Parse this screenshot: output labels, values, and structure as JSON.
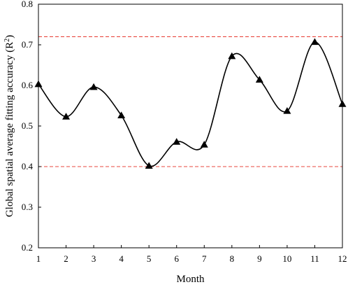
{
  "chart_data": {
    "type": "line",
    "xlabel": "Month",
    "ylabel_text": "Global spatial average fitting accuracy (R",
    "ylabel_sup": "2",
    "ylabel_close": ")",
    "x": [
      1,
      2,
      3,
      4,
      5,
      6,
      7,
      8,
      9,
      10,
      11,
      12
    ],
    "y": [
      0.603,
      0.523,
      0.596,
      0.526,
      0.402,
      0.461,
      0.454,
      0.672,
      0.614,
      0.537,
      0.707,
      0.554
    ],
    "xlim": [
      1,
      12
    ],
    "ylim": [
      0.2,
      0.8
    ],
    "xticks": [
      "1",
      "2",
      "3",
      "4",
      "5",
      "6",
      "7",
      "8",
      "9",
      "10",
      "11",
      "12"
    ],
    "yticks": [
      "0.2",
      "0.3",
      "0.4",
      "0.5",
      "0.6",
      "0.7",
      "0.8"
    ],
    "reference_lines": [
      0.72,
      0.4
    ],
    "marker": "triangle",
    "line_style": "smooth",
    "line_color": "#000000",
    "reference_color": "#e8483f",
    "grid": false,
    "legend": "none"
  }
}
